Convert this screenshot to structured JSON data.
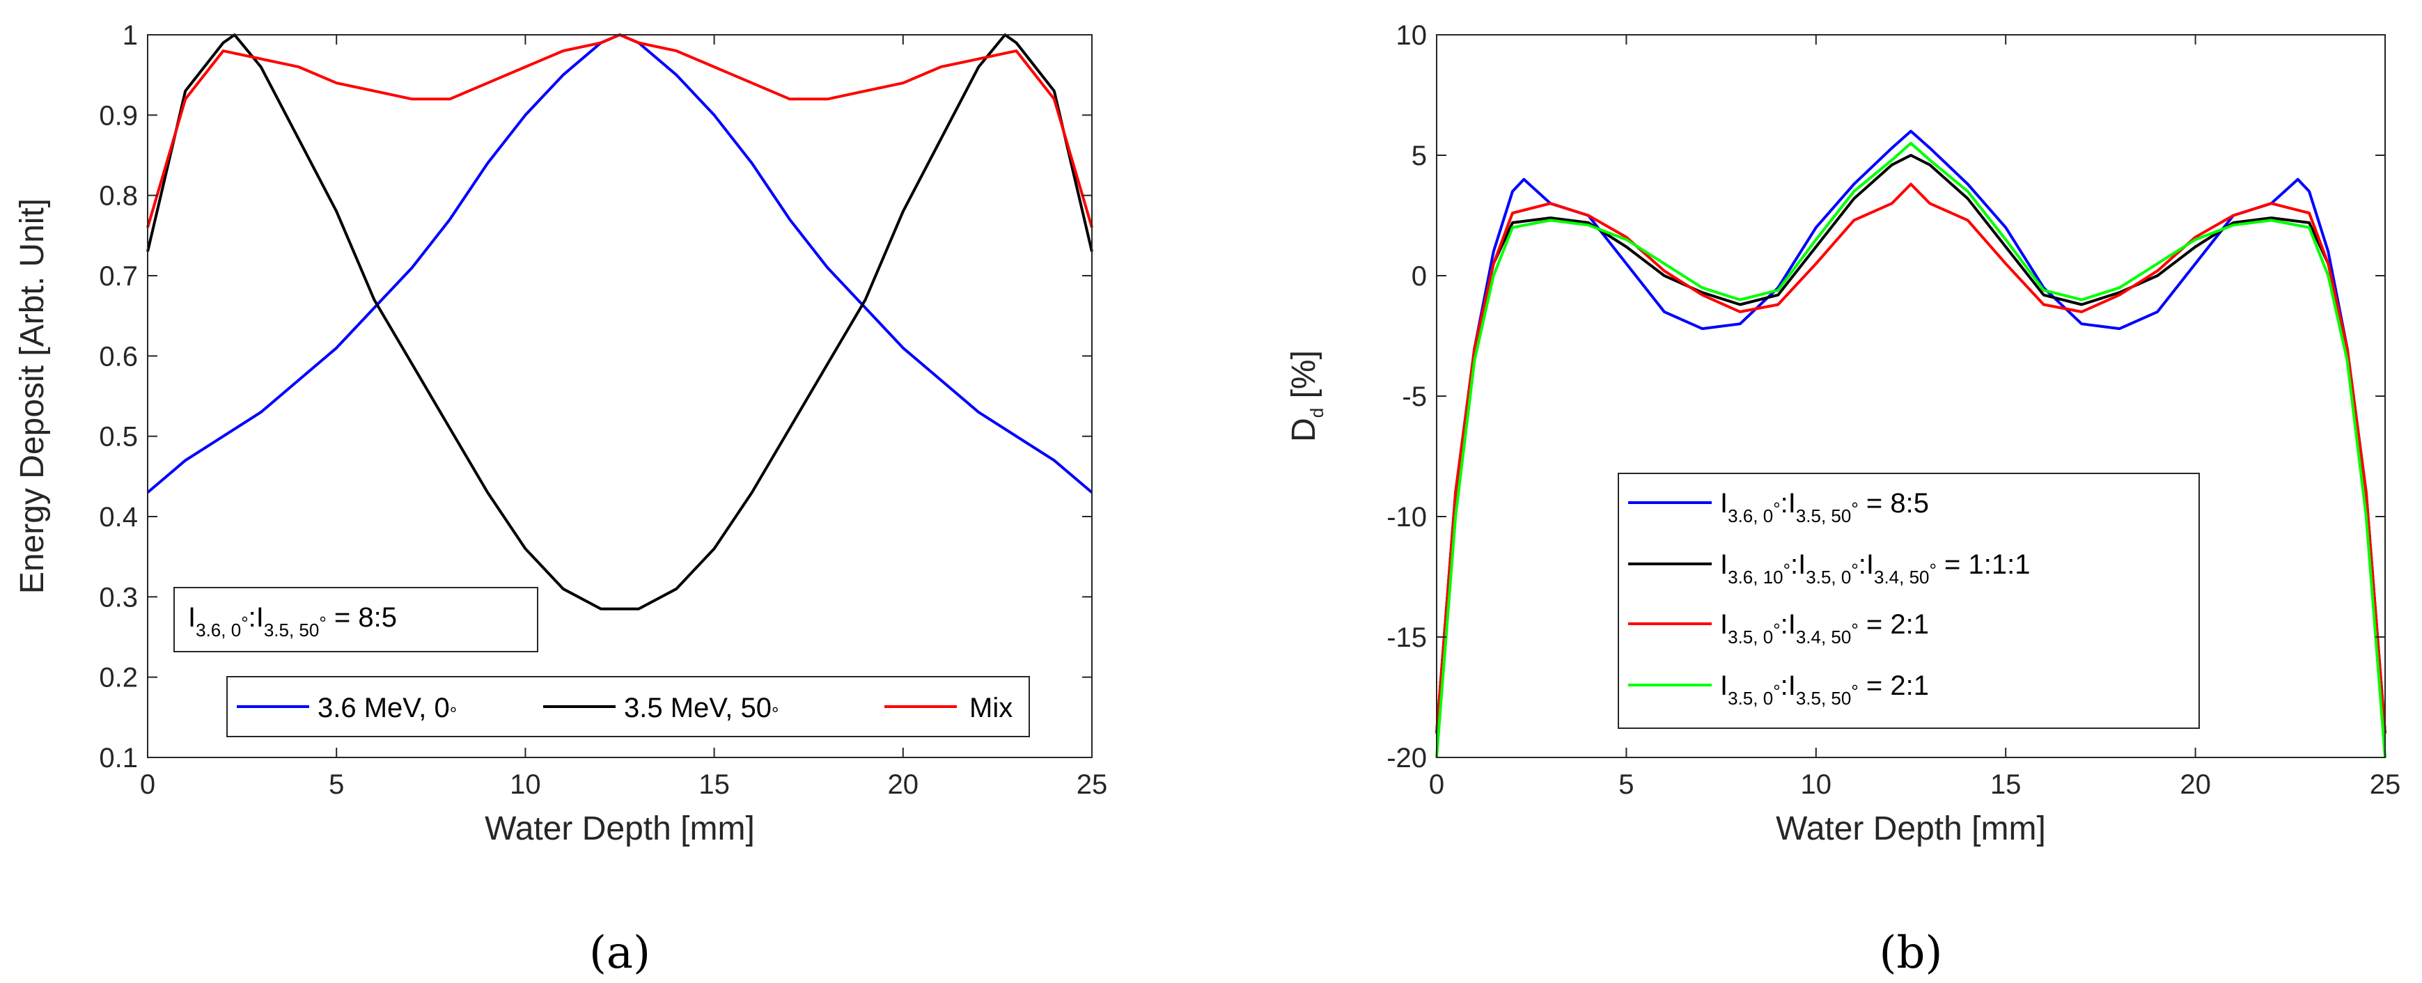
{
  "chart_data": [
    {
      "type": "line",
      "caption": "(a)",
      "title": "",
      "xlabel": "Water Depth [mm]",
      "ylabel": "Energy Deposit [Arbt. Unit]",
      "xlim": [
        0,
        25
      ],
      "ylim": [
        0.1,
        1
      ],
      "xticks": [
        "0",
        "5",
        "10",
        "15",
        "20",
        "25"
      ],
      "yticks": [
        "0.1",
        "0.2",
        "0.3",
        "0.4",
        "0.5",
        "0.6",
        "0.7",
        "0.8",
        "0.9",
        "1"
      ],
      "annotation": {
        "parts": [
          "I",
          "3.6, 0",
          "°",
          ":I",
          "3.5, 50",
          "°",
          " = 8:5"
        ]
      },
      "legend": [
        {
          "label": "3.6 MeV, 0",
          "sup": "°",
          "color": "#0000FF"
        },
        {
          "label": "3.5 MeV, 50",
          "sup": "°",
          "color": "#000000"
        },
        {
          "label": "Mix",
          "sup": "",
          "color": "#FF0000"
        }
      ],
      "series": [
        {
          "name": "3.6 MeV, 0°",
          "color": "#0000FF",
          "x": [
            0,
            1,
            2,
            3,
            4,
            5,
            6,
            7,
            8,
            9,
            10,
            11,
            12,
            12.5,
            13,
            14,
            15,
            16,
            17,
            18,
            19,
            20,
            21,
            22,
            23,
            24,
            25
          ],
          "y": [
            0.43,
            0.47,
            0.5,
            0.53,
            0.57,
            0.61,
            0.66,
            0.71,
            0.77,
            0.84,
            0.9,
            0.95,
            0.99,
            1.0,
            0.99,
            0.95,
            0.9,
            0.84,
            0.77,
            0.71,
            0.66,
            0.61,
            0.57,
            0.53,
            0.5,
            0.47,
            0.43
          ]
        },
        {
          "name": "3.5 MeV, 50°",
          "color": "#000000",
          "x": [
            0,
            1,
            2,
            2.3,
            3,
            4,
            5,
            6,
            7,
            8,
            9,
            10,
            11,
            12,
            13,
            14,
            15,
            16,
            17,
            18,
            19,
            20,
            21,
            22,
            22.7,
            23,
            24,
            25
          ],
          "y": [
            0.73,
            0.93,
            0.99,
            1.0,
            0.96,
            0.87,
            0.78,
            0.67,
            0.59,
            0.51,
            0.43,
            0.36,
            0.31,
            0.285,
            0.285,
            0.31,
            0.36,
            0.43,
            0.51,
            0.59,
            0.67,
            0.78,
            0.87,
            0.96,
            1.0,
            0.99,
            0.93,
            0.73
          ]
        },
        {
          "name": "Mix",
          "color": "#FF0000",
          "x": [
            0,
            1,
            2,
            3,
            4,
            5,
            6,
            7,
            8,
            9,
            10,
            11,
            12,
            12.5,
            13,
            14,
            15,
            16,
            17,
            18,
            19,
            20,
            21,
            22,
            23,
            24,
            25
          ],
          "y": [
            0.76,
            0.92,
            0.98,
            0.97,
            0.96,
            0.94,
            0.93,
            0.92,
            0.92,
            0.94,
            0.96,
            0.98,
            0.99,
            1.0,
            0.99,
            0.98,
            0.96,
            0.94,
            0.92,
            0.92,
            0.93,
            0.94,
            0.96,
            0.97,
            0.98,
            0.92,
            0.76
          ]
        }
      ]
    },
    {
      "type": "line",
      "caption": "(b)",
      "title": "",
      "xlabel": "Water Depth [mm]",
      "ylabel_main": "D",
      "ylabel_sub": "d",
      "ylabel_rest": " [%]",
      "xlim": [
        0,
        25
      ],
      "ylim": [
        -20,
        10
      ],
      "xticks": [
        "0",
        "5",
        "10",
        "15",
        "20",
        "25"
      ],
      "yticks": [
        "-20",
        "-15",
        "-10",
        "-5",
        "0",
        "5",
        "10"
      ],
      "legend": [
        {
          "parts": [
            "I",
            "3.6, 0",
            "°",
            ":I",
            "3.5, 50",
            "°",
            " = 8:5"
          ],
          "color": "#0000FF"
        },
        {
          "parts": [
            "I",
            "3.6, 10",
            "°",
            ":I",
            "3.5, 0",
            "°",
            ":I",
            "3.4, 50",
            "°",
            " = 1:1:1"
          ],
          "color": "#000000"
        },
        {
          "parts": [
            "I",
            "3.5, 0",
            "°",
            ":I",
            "3.4, 50",
            "°",
            " = 2:1"
          ],
          "color": "#FF0000"
        },
        {
          "parts": [
            "I",
            "3.5, 0",
            "°",
            ":I",
            "3.5, 50",
            "°",
            " = 2:1"
          ],
          "color": "#00FF00"
        }
      ],
      "series": [
        {
          "name": "I3.6,0°:I3.5,50° = 8:5",
          "color": "#0000FF",
          "x": [
            0,
            0.5,
            1,
            1.5,
            2,
            2.3,
            3,
            4,
            5,
            6,
            7,
            8,
            9,
            10,
            11,
            12,
            12.5,
            13,
            14,
            15,
            16,
            17,
            18,
            19,
            20,
            21,
            22,
            22.7,
            23,
            23.5,
            24,
            24.5,
            25
          ],
          "y": [
            -19,
            -9,
            -3,
            1,
            3.5,
            4.0,
            3,
            2.5,
            0.5,
            -1.5,
            -2.2,
            -2,
            -0.5,
            2,
            3.8,
            5.3,
            6.0,
            5.3,
            3.8,
            2,
            -0.5,
            -2,
            -2.2,
            -1.5,
            0.5,
            2.5,
            3,
            4.0,
            3.5,
            1,
            -3,
            -9,
            -19
          ]
        },
        {
          "name": "I3.6,10°:I3.5,0°:I3.4,50° = 1:1:1",
          "color": "#000000",
          "x": [
            0,
            0.5,
            1,
            1.5,
            2,
            3,
            4,
            5,
            6,
            7,
            8,
            9,
            10,
            11,
            12,
            12.5,
            13,
            14,
            15,
            16,
            17,
            18,
            19,
            20,
            21,
            22,
            23,
            23.5,
            24,
            24.5,
            25
          ],
          "y": [
            -19,
            -9,
            -3,
            0.5,
            2.2,
            2.4,
            2.2,
            1.2,
            0,
            -0.7,
            -1.2,
            -0.8,
            1.2,
            3.2,
            4.6,
            5.0,
            4.6,
            3.2,
            1.2,
            -0.8,
            -1.2,
            -0.7,
            0,
            1.2,
            2.2,
            2.4,
            2.2,
            0.5,
            -3,
            -9,
            -19
          ]
        },
        {
          "name": "I3.5,0°:I3.4,50° = 2:1",
          "color": "#FF0000",
          "x": [
            0,
            0.5,
            1,
            1.5,
            2,
            3,
            4,
            5,
            6,
            7,
            8,
            9,
            10,
            11,
            12,
            12.5,
            13,
            14,
            15,
            16,
            17,
            18,
            19,
            20,
            21,
            22,
            23,
            23.5,
            24,
            24.5,
            25
          ],
          "y": [
            -19,
            -9,
            -3,
            0.5,
            2.6,
            3.0,
            2.5,
            1.6,
            0.2,
            -0.8,
            -1.5,
            -1.2,
            0.5,
            2.3,
            3.0,
            3.8,
            3.0,
            2.3,
            0.5,
            -1.2,
            -1.5,
            -0.8,
            0.2,
            1.6,
            2.5,
            3.0,
            2.6,
            0.5,
            -3,
            -9,
            -19
          ]
        },
        {
          "name": "I3.5,0°:I3.5,50° = 2:1",
          "color": "#00FF00",
          "x": [
            0,
            0.5,
            1,
            1.5,
            2,
            3,
            4,
            5,
            6,
            7,
            8,
            9,
            10,
            11,
            12,
            12.5,
            13,
            14,
            15,
            16,
            17,
            18,
            19,
            20,
            21,
            22,
            23,
            23.5,
            24,
            24.5,
            25
          ],
          "y": [
            -20,
            -10,
            -3.5,
            0,
            2.0,
            2.3,
            2.1,
            1.5,
            0.5,
            -0.5,
            -1.0,
            -0.6,
            1.5,
            3.5,
            4.8,
            5.5,
            4.8,
            3.5,
            1.5,
            -0.6,
            -1.0,
            -0.5,
            0.5,
            1.5,
            2.1,
            2.3,
            2.0,
            0,
            -3.5,
            -10,
            -20
          ]
        }
      ]
    }
  ]
}
